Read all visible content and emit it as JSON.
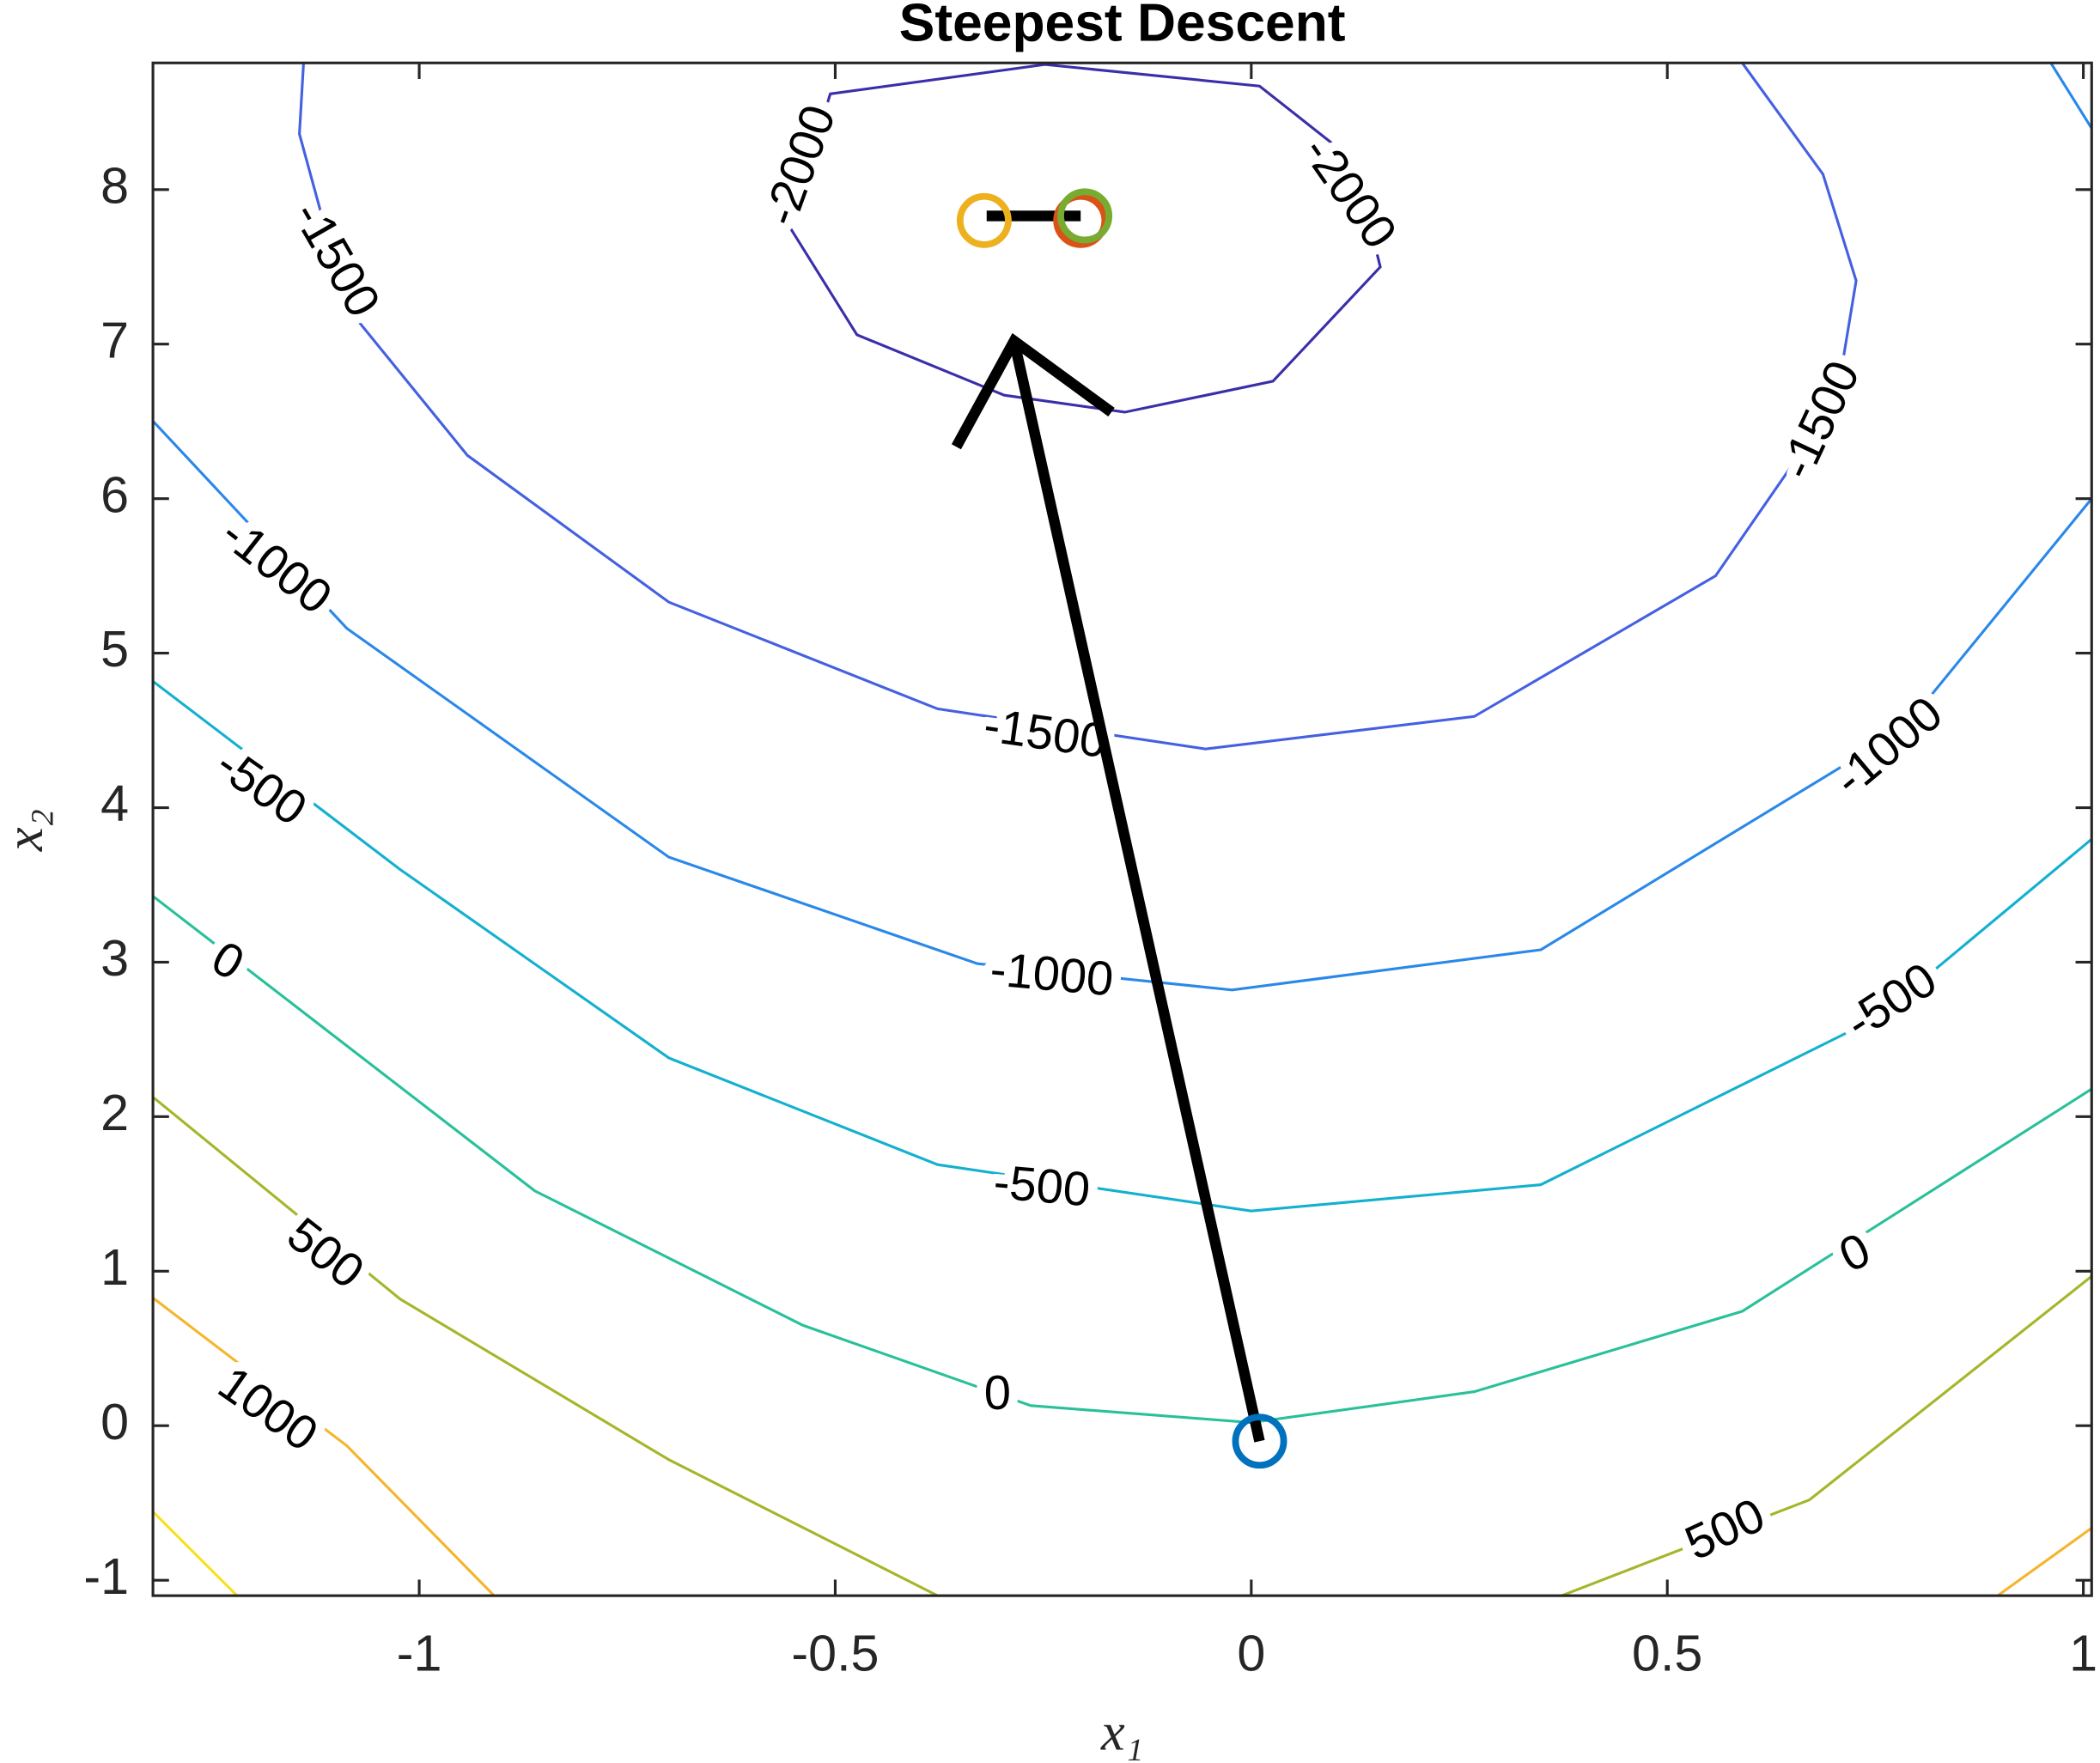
{
  "chart_data": {
    "type": "contour",
    "title": "Steepest Descent",
    "x_label": "x₁",
    "y_label": "x₂",
    "xlim": [
      -1.32,
      1.01
    ],
    "ylim": [
      -1.1,
      8.82
    ],
    "xticks": [
      -1,
      -0.5,
      0,
      0.5,
      1
    ],
    "yticks": [
      -1,
      0,
      1,
      2,
      3,
      4,
      5,
      6,
      7,
      8
    ],
    "contours": [
      {
        "color": "#f9e01f",
        "x": [
          -1.323,
          -1.219
        ],
        "y": [
          -0.54,
          -1.1
        ]
      },
      {
        "color": "#f5b52d",
        "x": [
          -1.323,
          -1.087,
          -0.91,
          null,
          0.897,
          1.013
        ],
        "y": [
          0.84,
          -0.13,
          -1.1,
          null,
          -1.1,
          -0.65
        ]
      },
      {
        "color": "#a6b52a",
        "x": [
          -1.323,
          -1.023,
          -0.7,
          -0.377,
          null,
          0.373,
          0.671,
          1.013
        ],
        "y": [
          2.14,
          0.82,
          -0.22,
          -1.1,
          null,
          -1.1,
          -0.48,
          0.98
        ]
      },
      {
        "color": "#29c09a",
        "x": [
          -1.323,
          -0.861,
          -0.539,
          -0.265,
          0,
          0.268,
          0.59,
          1.013
        ],
        "y": [
          3.44,
          1.52,
          0.65,
          0.13,
          0.02,
          0.22,
          0.74,
          2.19
        ]
      },
      {
        "color": "#14b0cf",
        "x": [
          -1.323,
          -1.023,
          -0.7,
          -0.377,
          0,
          0.348,
          0.752,
          1.013
        ],
        "y": [
          4.83,
          3.6,
          2.38,
          1.69,
          1.39,
          1.56,
          2.64,
          3.81
        ]
      },
      {
        "color": "#2a88e8",
        "x": [
          -1.323,
          -1.087,
          -0.7,
          -0.329,
          -0.023,
          0.348,
          0.784,
          1.013,
          null,
          0.961,
          1.013
        ],
        "y": [
          6.52,
          5.16,
          3.68,
          2.99,
          2.82,
          3.08,
          4.51,
          6.02,
          null,
          8.82,
          8.37
        ]
      },
      {
        "color": "#4560e0",
        "x": [
          -1.139,
          -1.144,
          -1.087,
          -0.942,
          -0.7,
          -0.377,
          -0.055,
          0.268,
          0.558,
          0.703,
          0.727,
          0.687,
          0.59
        ],
        "y": [
          8.82,
          8.36,
          7.24,
          6.28,
          5.33,
          4.64,
          4.38,
          4.59,
          5.5,
          6.63,
          7.41,
          8.1,
          8.82
        ]
      },
      {
        "color": "#3a2fa8",
        "x": [
          -0.248,
          -0.506,
          -0.555,
          -0.474,
          -0.297,
          -0.152,
          0.026,
          0.155,
          0.123,
          0.01,
          -0.248
        ],
        "y": [
          8.81,
          8.62,
          7.76,
          7.06,
          6.67,
          6.56,
          6.76,
          7.5,
          8.19,
          8.67,
          8.81
        ]
      }
    ],
    "contour_labels": [
      {
        "level": -2000,
        "x": -0.539,
        "y": 8.15
      },
      {
        "level": -2000,
        "x": 0.115,
        "y": 7.97
      },
      {
        "level": -1500,
        "x": -1.103,
        "y": 7.54
      },
      {
        "level": -1500,
        "x": 0.687,
        "y": 6.5
      },
      {
        "level": -1500,
        "x": -0.248,
        "y": 4.46
      },
      {
        "level": -1000,
        "x": -1.174,
        "y": 5.55
      },
      {
        "level": -1000,
        "x": 0.768,
        "y": 4.38
      },
      {
        "level": -1000,
        "x": -0.24,
        "y": 2.9
      },
      {
        "level": -500,
        "x": -1.192,
        "y": 4.12
      },
      {
        "level": -500,
        "x": 0.771,
        "y": 2.73
      },
      {
        "level": -500,
        "x": -0.252,
        "y": 1.53
      },
      {
        "level": 0,
        "x": -1.232,
        "y": 2.99
      },
      {
        "level": 0,
        "x": 0.727,
        "y": 1.1
      },
      {
        "level": 0,
        "x": -0.305,
        "y": 0.19
      },
      {
        "level": 500,
        "x": -1.115,
        "y": 1.1
      },
      {
        "level": 500,
        "x": 0.571,
        "y": -0.69
      },
      {
        "level": 1000,
        "x": -1.184,
        "y": 0.09
      }
    ],
    "iterates": {
      "x": [
        0.01,
        -0.321,
        -0.205,
        -0.2
      ],
      "y": [
        -0.1,
        7.8,
        7.8,
        7.83
      ],
      "colors": [
        "#0072bd",
        "#edb120",
        "#d95319",
        "#77ac30"
      ]
    },
    "steps": [
      {
        "x": [
          0.01,
          -0.285
        ],
        "y": [
          -0.1,
          7.02
        ]
      },
      {
        "x": [
          -0.318,
          -0.205
        ],
        "y": [
          7.83,
          7.83
        ]
      }
    ]
  }
}
